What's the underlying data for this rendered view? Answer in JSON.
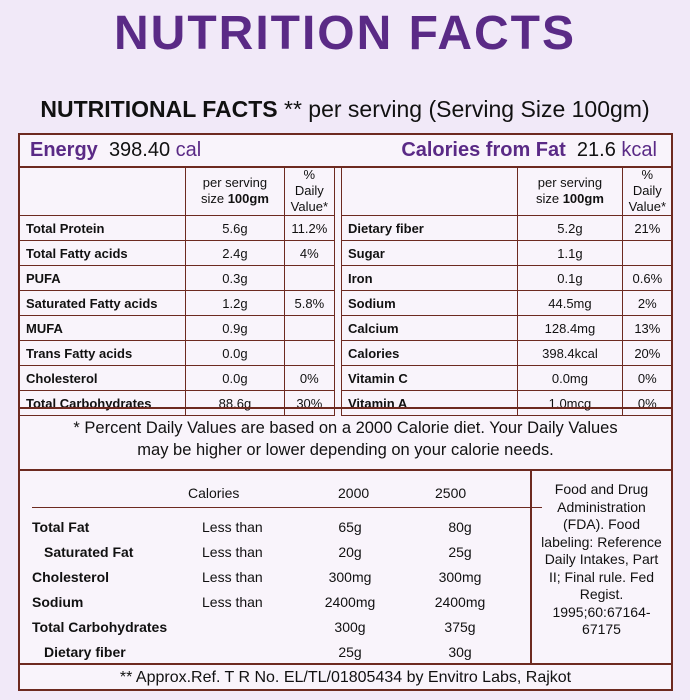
{
  "title": "NUTRITION FACTS",
  "subtitle": {
    "bold": "NUTRITIONAL FACTS",
    "rest": " ** per serving (Serving Size 100gm)"
  },
  "energy": {
    "label": "Energy",
    "value": "398.40",
    "unit": "cal"
  },
  "calories_from_fat": {
    "label": "Calories from Fat",
    "value": "21.6",
    "unit": "kcal"
  },
  "col_headers": {
    "serving_a": "per serving",
    "serving_b": "size ",
    "serving_c": "100gm",
    "dv_a": "% Daily",
    "dv_b": "Value*"
  },
  "left_rows": [
    {
      "name": "Total Protein",
      "amount": "5.6g",
      "dv": "11.2%"
    },
    {
      "name": "Total Fatty acids",
      "amount": "2.4g",
      "dv": "4%"
    },
    {
      "name": "PUFA",
      "amount": "0.3g",
      "dv": ""
    },
    {
      "name": "Saturated Fatty acids",
      "amount": "1.2g",
      "dv": "5.8%"
    },
    {
      "name": "MUFA",
      "amount": "0.9g",
      "dv": ""
    },
    {
      "name": "Trans Fatty acids",
      "amount": "0.0g",
      "dv": ""
    },
    {
      "name": "Cholesterol",
      "amount": "0.0g",
      "dv": "0%"
    },
    {
      "name": "Total Carbohydrates",
      "amount": "88.6g",
      "dv": "30%"
    }
  ],
  "right_rows": [
    {
      "name": "Dietary fiber",
      "amount": "5.2g",
      "dv": "21%"
    },
    {
      "name": "Sugar",
      "amount": "1.1g",
      "dv": ""
    },
    {
      "name": "Iron",
      "amount": "0.1g",
      "dv": "0.6%"
    },
    {
      "name": "Sodium",
      "amount": "44.5mg",
      "dv": "2%"
    },
    {
      "name": "Calcium",
      "amount": "128.4mg",
      "dv": "13%"
    },
    {
      "name": "Calories",
      "amount": "398.4kcal",
      "dv": "20%"
    },
    {
      "name": "Vitamin C",
      "amount": "0.0mg",
      "dv": "0%"
    },
    {
      "name": "Vitamin A",
      "amount": "1.0mcg",
      "dv": "0%"
    }
  ],
  "note": [
    "* Percent Daily Values are based on a 2000 Calorie diet. Your Daily Values",
    "may be higher or lower depending on your calorie needs."
  ],
  "reference": {
    "headers": [
      "Calories",
      "2000",
      "2500"
    ],
    "rows": [
      {
        "name": "Total Fat",
        "limit": "Less than",
        "a": "65g",
        "b": "80g"
      },
      {
        "name": "Saturated Fat",
        "limit": "Less than",
        "a": "20g",
        "b": "25g"
      },
      {
        "name": "Cholesterol",
        "limit": "Less than",
        "a": "300mg",
        "b": "300mg"
      },
      {
        "name": "Sodium",
        "limit": "Less than",
        "a": "2400mg",
        "b": "2400mg"
      },
      {
        "name": "Total Carbohydrates",
        "limit": "",
        "a": "300g",
        "b": "375g"
      },
      {
        "name": "Dietary fiber",
        "limit": "",
        "a": "25g",
        "b": "30g"
      }
    ]
  },
  "fda_citation": "Food and Drug Administration (FDA). Food labeling: Reference Daily Intakes, Part II; Final rule. Fed Regist. 1995;60:67164-67175",
  "footer": "** Approx.Ref. T R No. EL/TL/01805434 by Envitro Labs, Rajkot",
  "colors": {
    "title": "#5a2a86",
    "border": "#6d2a20",
    "background": "#f1e9f8"
  }
}
